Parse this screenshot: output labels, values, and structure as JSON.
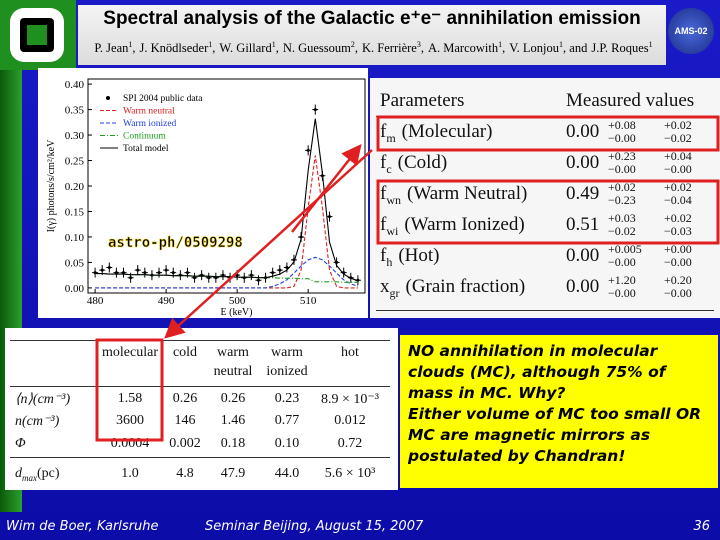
{
  "header": {
    "title": "Spectral analysis of the Galactic e⁺e⁻ annihilation emission",
    "authors": [
      {
        "name": "P. Jean",
        "aff": "1",
        "sep": ","
      },
      {
        "name": "J. Knödlseder",
        "aff": "1",
        "sep": ","
      },
      {
        "name": "W. Gillard",
        "aff": "1",
        "sep": ","
      },
      {
        "name": "N. Guessoum",
        "aff": "2",
        "sep": ","
      },
      {
        "name": "K. Ferrière",
        "aff": "3",
        "sep": ","
      },
      {
        "name": "A. Marcowith",
        "aff": "1",
        "sep": ","
      },
      {
        "name": "V. Lonjou",
        "aff": "1",
        "sep": ", and"
      },
      {
        "name": "J.P. Roques",
        "aff": "1"
      }
    ],
    "logo": "AMS-02"
  },
  "chart_data": {
    "type": "line",
    "xlabel": "E (keV)",
    "ylabel": "I(γ) photons/s/cm²/keV",
    "annotation": "astro-ph/0509298",
    "x": [
      480,
      481,
      482,
      483,
      484,
      485,
      486,
      487,
      488,
      489,
      490,
      491,
      492,
      493,
      494,
      495,
      496,
      497,
      498,
      499,
      500,
      501,
      502,
      503,
      504,
      505,
      506,
      507,
      508,
      509,
      510,
      511,
      512,
      513,
      514,
      515,
      516,
      517
    ],
    "series": [
      {
        "name": "SPI 2004 public data",
        "color": "#000000",
        "style": "points",
        "values": [
          0.03,
          0.035,
          0.04,
          0.03,
          0.03,
          0.02,
          0.035,
          0.03,
          0.025,
          0.03,
          0.035,
          0.03,
          0.025,
          0.03,
          0.02,
          0.025,
          0.02,
          0.02,
          0.025,
          0.02,
          0.025,
          0.02,
          0.025,
          0.015,
          0.02,
          0.03,
          0.035,
          0.04,
          0.055,
          0.1,
          0.27,
          0.35,
          0.22,
          0.14,
          0.05,
          0.03,
          0.02,
          0.015
        ]
      },
      {
        "name": "Warm neutral",
        "color": "#e02020",
        "style": "line",
        "dash": "4 2",
        "values": [
          0,
          0,
          0,
          0,
          0,
          0,
          0,
          0,
          0,
          0,
          0,
          0,
          0,
          0,
          0,
          0,
          0,
          0,
          0,
          0,
          0,
          0,
          0,
          0,
          0,
          0,
          0,
          0,
          0.003,
          0.035,
          0.158,
          0.26,
          0.158,
          0.035,
          0.003,
          0,
          0,
          0
        ]
      },
      {
        "name": "Warm ionized",
        "color": "#2040e0",
        "style": "line",
        "dash": "4 2",
        "values": [
          0,
          0,
          0,
          0,
          0,
          0,
          0,
          0,
          0,
          0,
          0,
          0,
          0,
          0,
          0,
          0,
          0,
          0,
          0,
          0,
          0,
          0,
          0,
          0,
          0,
          0.003,
          0.008,
          0.016,
          0.029,
          0.043,
          0.055,
          0.06,
          0.055,
          0.043,
          0.029,
          0.016,
          0.008,
          0.003
        ]
      },
      {
        "name": "Continuum",
        "color": "#20a020",
        "style": "line",
        "dash": "5 2 1 2",
        "values": [
          0.028,
          0.028,
          0.027,
          0.027,
          0.027,
          0.026,
          0.026,
          0.026,
          0.025,
          0.025,
          0.025,
          0.024,
          0.024,
          0.024,
          0.023,
          0.023,
          0.023,
          0.022,
          0.022,
          0.022,
          0.021,
          0.021,
          0.021,
          0.02,
          0.02,
          0.02,
          0.019,
          0.019,
          0.019,
          0.018,
          0.018,
          0.012,
          0.012,
          0.012,
          0.012,
          0.011,
          0.011,
          0.011
        ]
      },
      {
        "name": "Total model",
        "color": "#000000",
        "style": "line",
        "values": [
          0.028,
          0.028,
          0.027,
          0.027,
          0.027,
          0.026,
          0.026,
          0.026,
          0.025,
          0.025,
          0.025,
          0.024,
          0.024,
          0.024,
          0.023,
          0.023,
          0.023,
          0.022,
          0.022,
          0.022,
          0.021,
          0.021,
          0.021,
          0.02,
          0.02,
          0.023,
          0.027,
          0.035,
          0.051,
          0.096,
          0.231,
          0.332,
          0.225,
          0.09,
          0.044,
          0.027,
          0.019,
          0.014
        ]
      }
    ],
    "xlim": [
      479,
      518
    ],
    "xticks": [
      480,
      490,
      500,
      510
    ],
    "ylim": [
      -0.01,
      0.41
    ],
    "yticks": [
      {
        "value": 0,
        "label": "0.00"
      },
      {
        "value": 0.05,
        "label": "0.05"
      },
      {
        "value": 0.1,
        "label": "0.10"
      },
      {
        "value": 0.15,
        "label": "0.15"
      },
      {
        "value": 0.2,
        "label": "0.20"
      },
      {
        "value": 0.25,
        "label": "0.25"
      },
      {
        "value": 0.3,
        "label": "0.30"
      },
      {
        "value": 0.35,
        "label": "0.35"
      },
      {
        "value": 0.4,
        "label": "0.40"
      }
    ],
    "grid": false,
    "legend": "upper left"
  },
  "parameters_table": {
    "header": [
      "Parameters",
      "Measured values"
    ],
    "rows": [
      {
        "symbol": "f",
        "sub": "m",
        "name": "(Molecular)",
        "value": "0.00",
        "plus": [
          "+0.08",
          "+0.02"
        ],
        "minus": [
          "−0.00",
          "−0.02"
        ]
      },
      {
        "symbol": "f",
        "sub": "c",
        "name": "(Cold)",
        "value": "0.00",
        "plus": [
          "+0.23",
          "+0.04"
        ],
        "minus": [
          "−0.00",
          "−0.00"
        ]
      },
      {
        "symbol": "f",
        "sub": "wn",
        "name": "(Warm Neutral)",
        "value": "0.49",
        "plus": [
          "+0.02",
          "+0.02"
        ],
        "minus": [
          "−0.23",
          "−0.04"
        ]
      },
      {
        "symbol": "f",
        "sub": "wi",
        "name": "(Warm Ionized)",
        "value": "0.51",
        "plus": [
          "+0.03",
          "+0.02"
        ],
        "minus": [
          "−0.02",
          "−0.03"
        ]
      },
      {
        "symbol": "f",
        "sub": "h",
        "name": "(Hot)",
        "value": "0.00",
        "plus": [
          "+0.005",
          "+0.00"
        ],
        "minus": [
          "−0.00",
          "−0.00"
        ]
      },
      {
        "symbol": "x",
        "sub": "gr",
        "name": "(Grain fraction)",
        "value": "0.00",
        "plus": [
          "+1.20",
          "+0.20"
        ],
        "minus": [
          "−0.00",
          "−0.00"
        ]
      }
    ]
  },
  "density_table": {
    "header": [
      "molecular",
      "cold",
      "warm neutral",
      "warm ionized",
      "hot"
    ],
    "rows": [
      {
        "label": "⟨n⟩(cm⁻³)",
        "cells": [
          "1.58",
          "0.26",
          "0.26",
          "0.23",
          "8.9 × 10⁻³"
        ]
      },
      {
        "label": "n(cm⁻³)",
        "cells": [
          "3600",
          "146",
          "1.46",
          "0.77",
          "0.012"
        ]
      },
      {
        "label": "Φ",
        "cells": [
          "0.0004",
          "0.002",
          "0.18",
          "0.10",
          "0.72"
        ]
      },
      {
        "label": "d",
        "sub": "max",
        "unit": "(pc)",
        "cells": [
          "1.0",
          "4.8",
          "47.9",
          "44.0",
          "5.6 × 10³"
        ]
      }
    ]
  },
  "note": [
    "NO annihilation in molecular clouds (MC), although 75% of mass in MC. Why?",
    "Either volume of MC too small OR MC are magnetic mirrors as postulated by Chandran!"
  ],
  "footer": {
    "left": "Wim de Boer, Karlsruhe",
    "center": "Seminar Beijing, August 15, 2007",
    "page": "36"
  }
}
